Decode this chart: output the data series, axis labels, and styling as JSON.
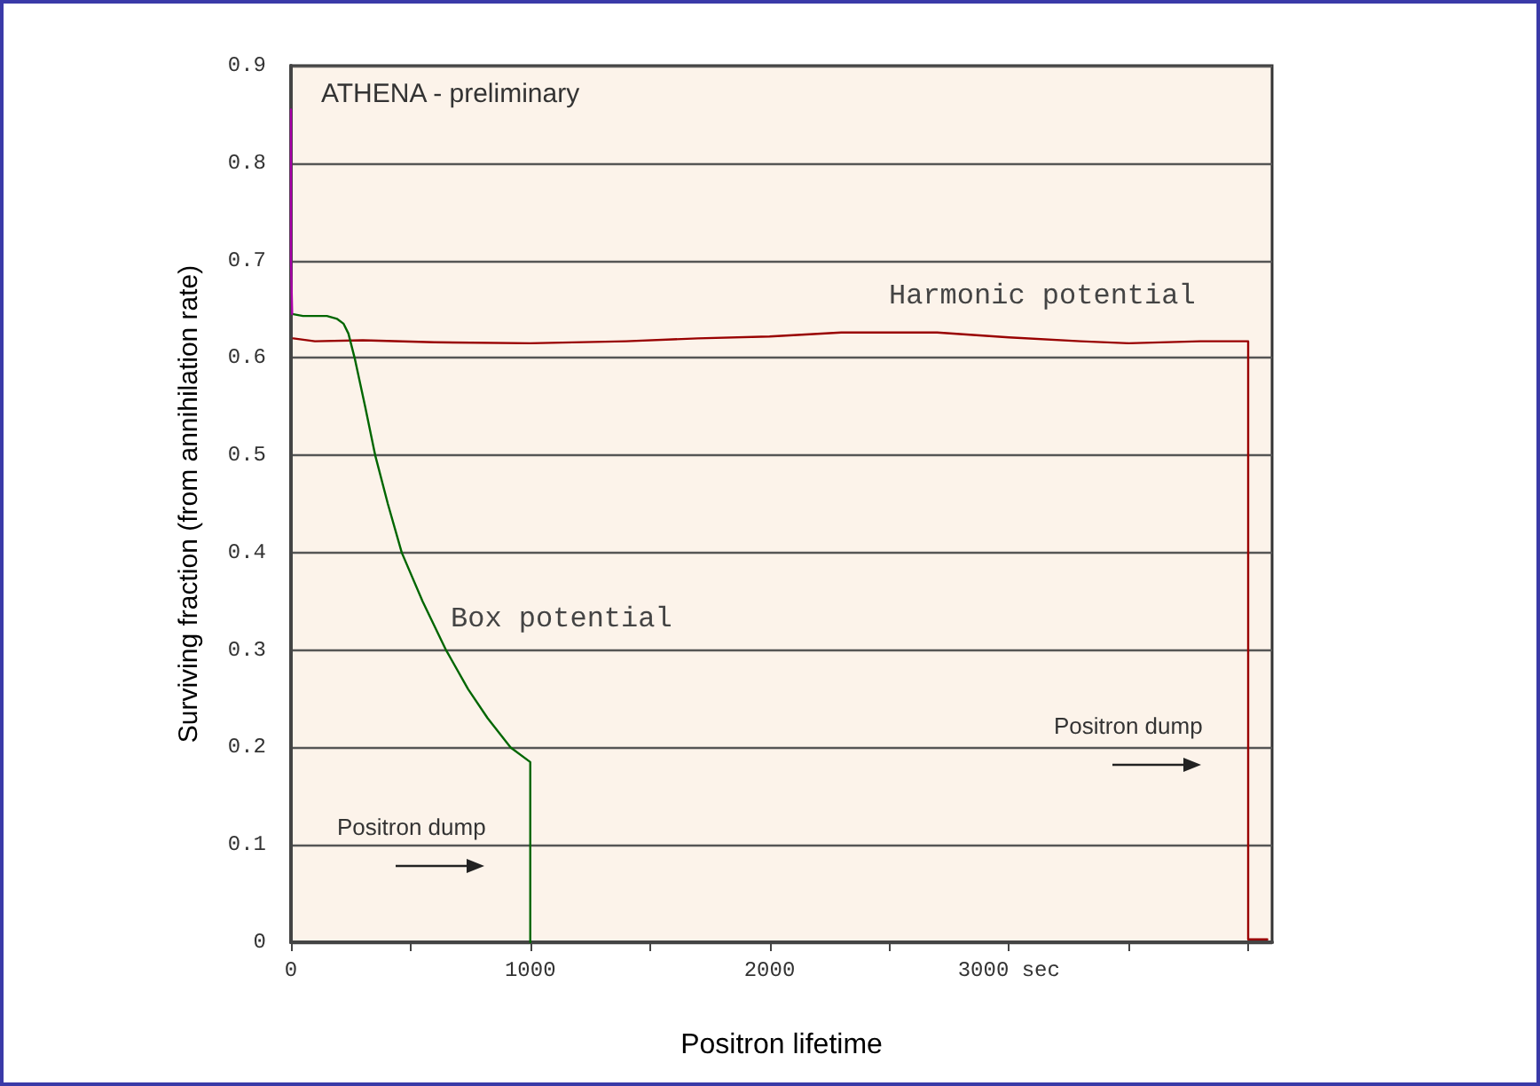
{
  "chart_data": {
    "type": "line",
    "xlabel": "Positron lifetime",
    "ylabel": "Surviving fraction (from annihilation rate)",
    "xlim": [
      0,
      4100
    ],
    "xticks": [
      0,
      {
        "value": 500,
        "label": null
      },
      1000,
      {
        "value": 1500,
        "label": null
      },
      2000,
      {
        "value": 2500,
        "label": null
      },
      {
        "value": 3000,
        "label": "3000 sec"
      },
      {
        "value": 3500,
        "label": null
      },
      {
        "value": 4000,
        "label": null
      }
    ],
    "ylim": [
      0,
      0.9
    ],
    "yticks": [
      0,
      0.1,
      0.2,
      0.3,
      0.4,
      0.5,
      0.6,
      0.7,
      0.8,
      0.9
    ],
    "grid": "y",
    "marker": "none",
    "line_style": "solid",
    "series": [
      {
        "color": "#990000",
        "x": [
          10,
          100,
          300,
          600,
          1000,
          1400,
          1700,
          2000,
          2300,
          2700,
          3000,
          3300,
          3500,
          3800,
          3990,
          4000,
          4000,
          4080
        ],
        "values": [
          0.62,
          0.617,
          0.618,
          0.616,
          0.615,
          0.617,
          0.62,
          0.622,
          0.626,
          0.626,
          0.621,
          0.617,
          0.615,
          0.617,
          0.617,
          0.617,
          0.003,
          0.003
        ]
      },
      {
        "color": "#006600",
        "x": [
          5,
          50,
          150,
          193,
          220,
          240,
          266,
          310,
          352,
          405,
          463,
          550,
          648,
          740,
          822,
          918,
          1000,
          1000
        ],
        "values": [
          0.645,
          0.643,
          0.643,
          0.64,
          0.635,
          0.625,
          0.6,
          0.55,
          0.5,
          0.45,
          0.4,
          0.35,
          0.3,
          0.26,
          0.23,
          0.2,
          0.185,
          0
        ]
      },
      {
        "color": "#aa00aa",
        "x": [
          0,
          0,
          5
        ],
        "values": [
          0.855,
          0.7,
          0.645
        ]
      }
    ],
    "annotations": [
      "ATHENA - preliminary",
      "Box potential",
      "Harmonic potential",
      "Positron dump",
      "Positron dump"
    ]
  }
}
